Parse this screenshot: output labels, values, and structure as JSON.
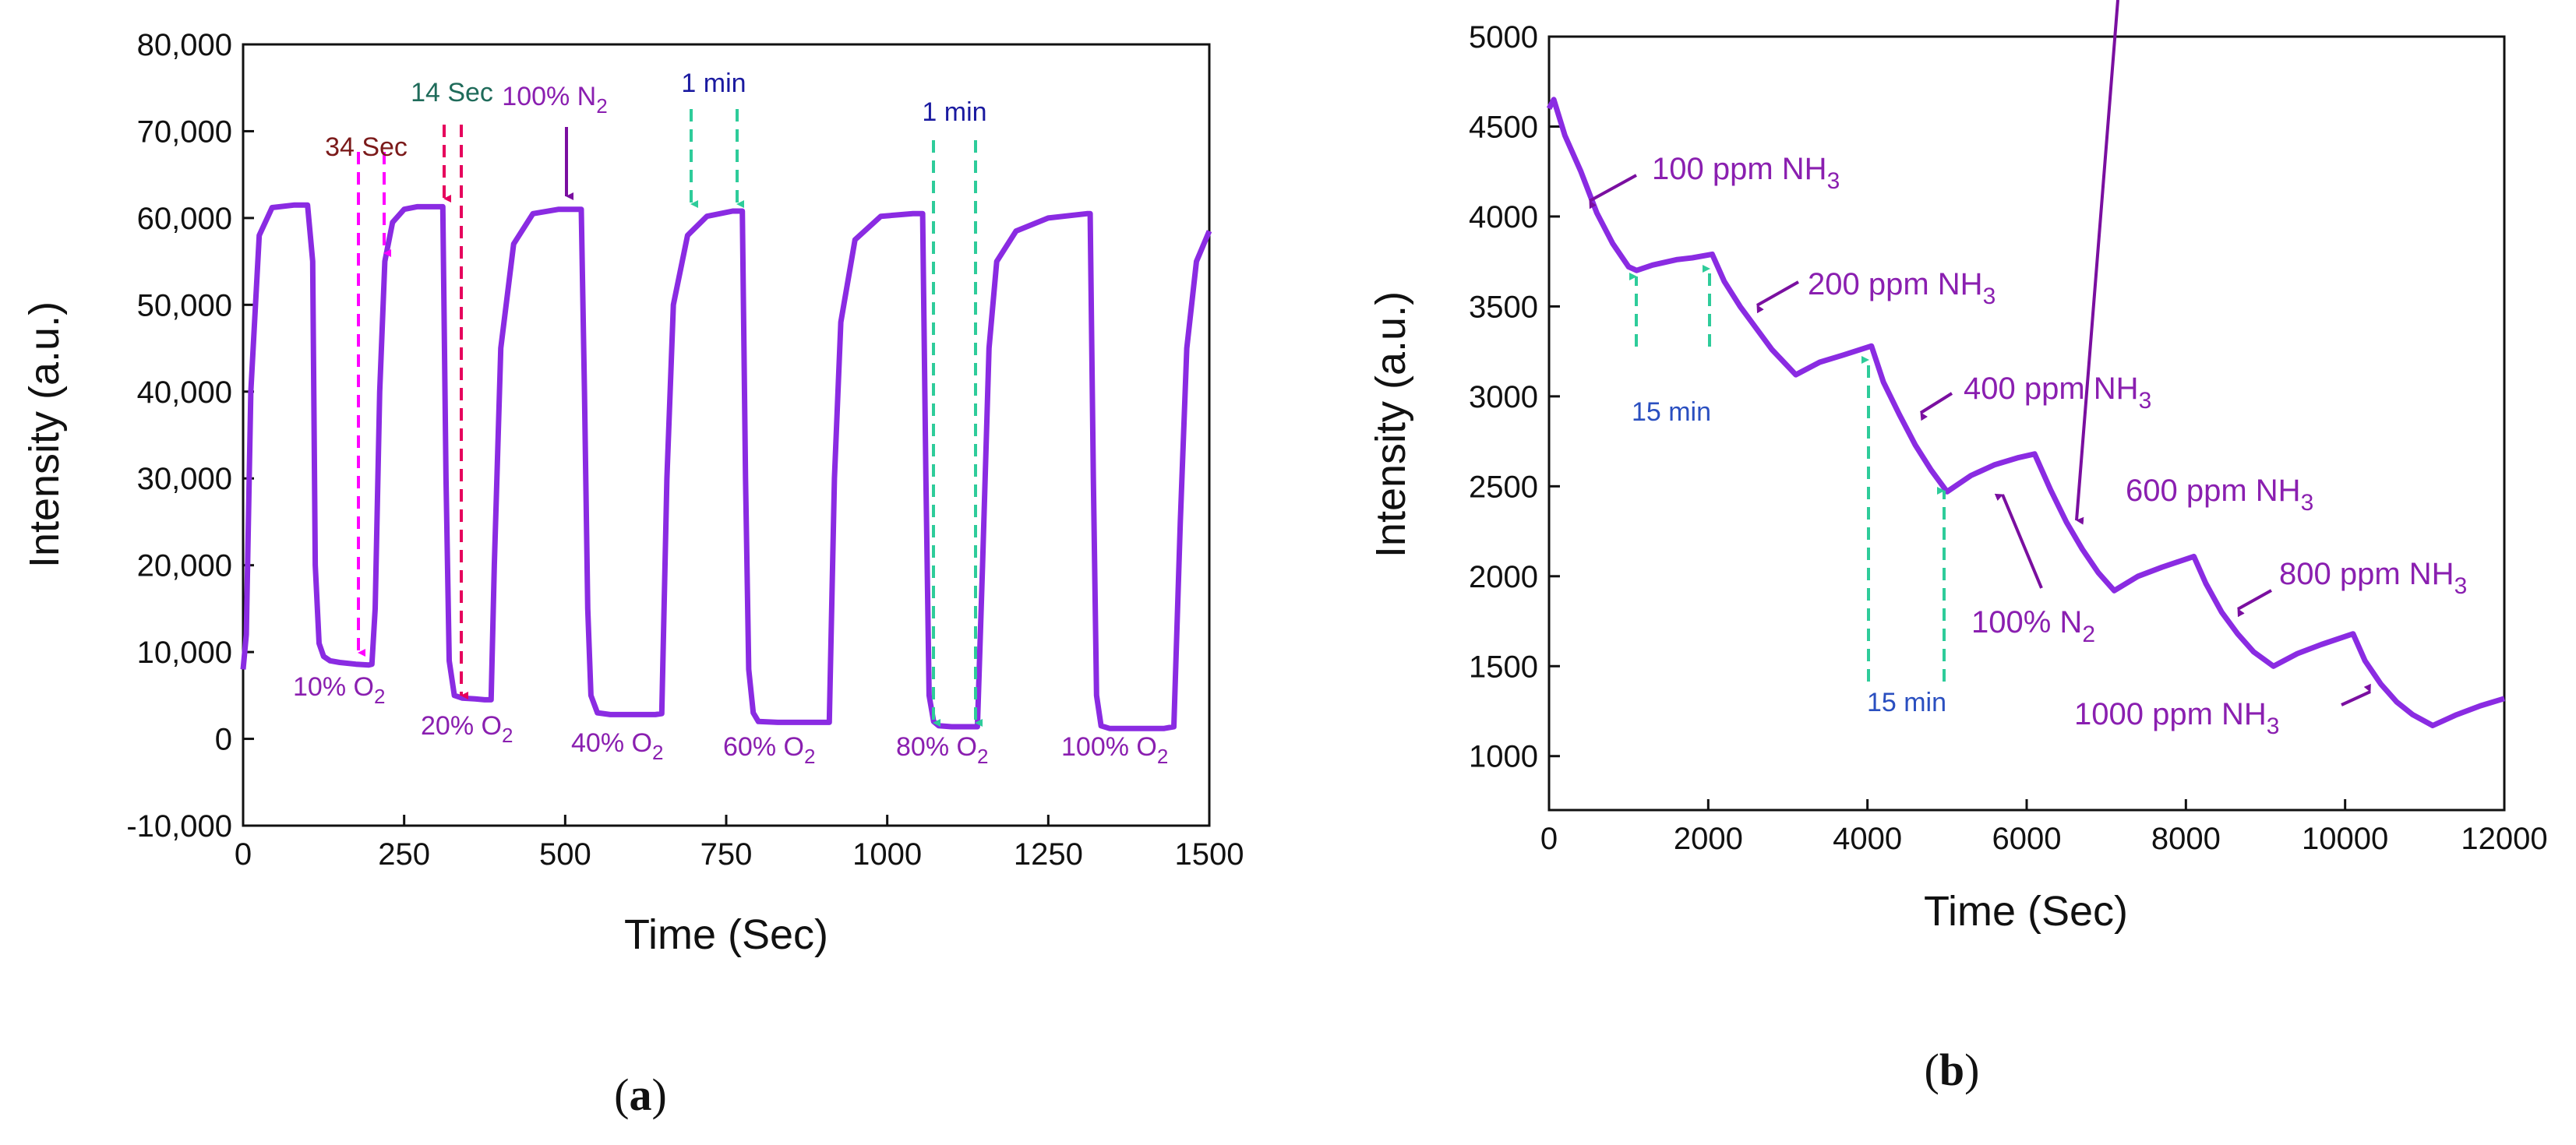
{
  "chart_data": [
    {
      "id": "a",
      "type": "line",
      "panel_label": "a",
      "xlabel": "Time (Sec)",
      "ylabel": "Intensity (a.u.)",
      "xlim": [
        0,
        1500
      ],
      "ylim": [
        -10000,
        80000
      ],
      "xticks": [
        0,
        250,
        500,
        750,
        1000,
        1250,
        1500
      ],
      "xtick_labels": [
        "0",
        "250",
        "500",
        "750",
        "1000",
        "1250",
        "1500"
      ],
      "yticks": [
        -10000,
        0,
        10000,
        20000,
        30000,
        40000,
        50000,
        60000,
        70000,
        80000
      ],
      "ytick_labels": [
        "-10,000",
        "0",
        "10,000",
        "20,000",
        "30,000",
        "40,000",
        "50,000",
        "60,000",
        "70,000",
        "80,000"
      ],
      "series_color": "#8a2be2",
      "series": [
        {
          "name": "O2 response",
          "x": [
            0,
            5,
            12,
            25,
            45,
            80,
            100,
            108,
            112,
            118,
            125,
            135,
            150,
            175,
            195,
            200,
            205,
            212,
            220,
            232,
            250,
            270,
            295,
            310,
            315,
            320,
            328,
            340,
            360,
            375,
            385,
            390,
            400,
            420,
            450,
            490,
            525,
            530,
            535,
            540,
            550,
            570,
            610,
            640,
            650,
            658,
            668,
            690,
            720,
            760,
            775,
            780,
            785,
            792,
            800,
            830,
            870,
            900,
            910,
            918,
            928,
            950,
            990,
            1040,
            1055,
            1060,
            1065,
            1072,
            1080,
            1100,
            1130,
            1140,
            1148,
            1158,
            1170,
            1200,
            1250,
            1310,
            1315,
            1320,
            1325,
            1332,
            1345,
            1370,
            1400,
            1430,
            1445,
            1455,
            1465,
            1480,
            1500
          ],
          "y": [
            8000,
            12000,
            40000,
            58000,
            61200,
            61500,
            61500,
            55000,
            20000,
            11000,
            9500,
            9000,
            8800,
            8600,
            8500,
            8600,
            15000,
            40000,
            55000,
            59500,
            61000,
            61300,
            61300,
            61300,
            30000,
            9000,
            5000,
            4700,
            4600,
            4500,
            4500,
            20000,
            45000,
            57000,
            60500,
            61000,
            61000,
            40000,
            15000,
            5000,
            3000,
            2800,
            2800,
            2800,
            2900,
            30000,
            50000,
            58000,
            60200,
            60800,
            60800,
            30000,
            8000,
            3000,
            2000,
            1900,
            1900,
            1900,
            1900,
            30000,
            48000,
            57500,
            60200,
            60500,
            60500,
            30000,
            5000,
            2000,
            1500,
            1400,
            1400,
            1400,
            20000,
            45000,
            55000,
            58500,
            60000,
            60500,
            60500,
            30000,
            5000,
            1500,
            1200,
            1200,
            1200,
            1200,
            1400,
            25000,
            45000,
            55000,
            58500
          ]
        }
      ],
      "annotations": {
        "t34": "34 Sec",
        "t14": "14 Sec",
        "n2_top": "100% N",
        "n2_sub": "2",
        "min1a": "1 min",
        "min1b": "1 min",
        "o2_10": "10% O",
        "o2_20": "20% O",
        "o2_40": "40% O",
        "o2_60": "60% O",
        "o2_80": "80% O",
        "o2_100": "100% O",
        "o2_sub": "2"
      }
    },
    {
      "id": "b",
      "type": "line",
      "panel_label": "b",
      "xlabel": "Time (Sec)",
      "ylabel": "Intensity (a.u.)",
      "xlim": [
        0,
        12000
      ],
      "ylim": [
        700,
        5000
      ],
      "xticks": [
        0,
        2000,
        4000,
        6000,
        8000,
        10000,
        12000
      ],
      "xtick_labels": [
        "0",
        "2000",
        "4000",
        "6000",
        "8000",
        "10000",
        "12000"
      ],
      "yticks": [
        1000,
        1500,
        2000,
        2500,
        3000,
        3500,
        4000,
        4500,
        5000
      ],
      "ytick_labels": [
        "1000",
        "1500",
        "2000",
        "2500",
        "3000",
        "3500",
        "4000",
        "4500",
        "5000"
      ],
      "series_color": "#8a2be2",
      "series": [
        {
          "name": "NH3 response",
          "x": [
            0,
            60,
            200,
            400,
            600,
            800,
            1000,
            1100,
            1300,
            1600,
            1800,
            2050,
            2200,
            2400,
            2600,
            2800,
            3100,
            3400,
            3700,
            4050,
            4200,
            4400,
            4600,
            4800,
            5000,
            5300,
            5600,
            5900,
            6100,
            6300,
            6500,
            6700,
            6900,
            7100,
            7400,
            7700,
            8100,
            8250,
            8450,
            8650,
            8850,
            9100,
            9400,
            9700,
            10100,
            10250,
            10450,
            10650,
            10850,
            11100,
            11400,
            11700,
            12000
          ],
          "y": [
            4600,
            4650,
            4450,
            4250,
            4020,
            3850,
            3720,
            3700,
            3730,
            3760,
            3770,
            3790,
            3640,
            3500,
            3380,
            3260,
            3120,
            3190,
            3230,
            3280,
            3080,
            2900,
            2730,
            2590,
            2470,
            2560,
            2620,
            2660,
            2680,
            2480,
            2300,
            2150,
            2020,
            1920,
            2000,
            2050,
            2110,
            1960,
            1800,
            1680,
            1580,
            1500,
            1570,
            1620,
            1680,
            1530,
            1400,
            1300,
            1230,
            1170,
            1230,
            1280,
            1320
          ]
        }
      ],
      "annotations": {
        "nh3_100": "100 ppm NH",
        "nh3_200": "200 ppm NH",
        "nh3_400": "400 ppm NH",
        "nh3_600": "600 ppm NH",
        "nh3_800": "800 ppm NH",
        "nh3_1000": "1000 ppm NH",
        "nh3_sub": "3",
        "min15a": "15 min",
        "min15b": "15 min",
        "n2": "100% N",
        "n2_sub": "2"
      }
    }
  ]
}
